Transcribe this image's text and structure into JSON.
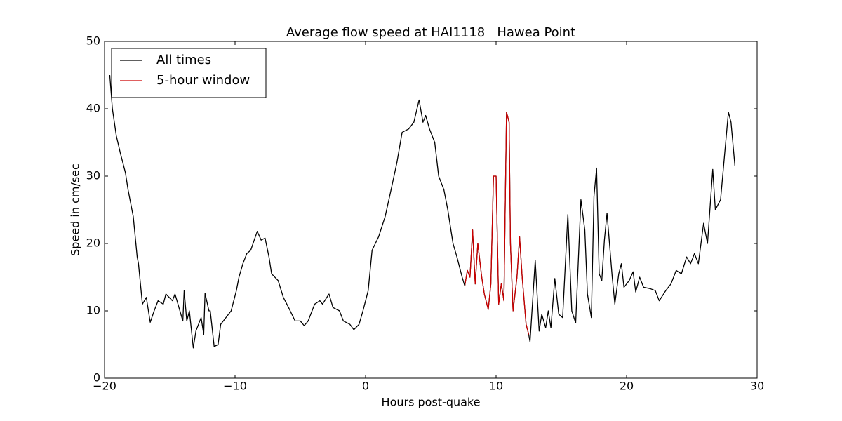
{
  "chart_data": {
    "type": "line",
    "title": "Average flow speed at HAI1118   Hawea Point",
    "xlabel": "Hours post-quake",
    "ylabel": "Speed in cm/sec",
    "xlim": [
      -20,
      30
    ],
    "ylim": [
      0,
      50
    ],
    "xticks": [
      {
        "value": -20,
        "label": "−20"
      },
      {
        "value": -10,
        "label": "−10"
      },
      0,
      10,
      20,
      30
    ],
    "yticks": [
      0,
      10,
      20,
      30,
      40,
      50
    ],
    "legend": "upper left",
    "series": [
      {
        "name": "All times",
        "color": "#000000",
        "x": [
          -19.6,
          -19.4,
          -19.1,
          -18.8,
          -18.4,
          -18.2,
          -17.8,
          -17.5,
          -17.4,
          -17.1,
          -16.8,
          -16.5,
          -16.2,
          -15.9,
          -15.5,
          -15.3,
          -14.8,
          -14.6,
          -14.3,
          -14.0,
          -13.9,
          -13.7,
          -13.5,
          -13.2,
          -13.0,
          -12.6,
          -12.4,
          -12.3,
          -12.0,
          -11.9,
          -11.6,
          -11.3,
          -11.1,
          -10.7,
          -10.3,
          -9.9,
          -9.7,
          -9.4,
          -9.1,
          -8.8,
          -8.3,
          -8.0,
          -7.7,
          -7.4,
          -7.2,
          -6.7,
          -6.3,
          -5.9,
          -5.4,
          -5.0,
          -4.7,
          -4.4,
          -3.9,
          -3.5,
          -3.3,
          -2.8,
          -2.5,
          -2.0,
          -1.7,
          -1.2,
          -0.9,
          -0.5,
          -0.2,
          0.2,
          0.5,
          1.0,
          1.5,
          1.9,
          2.4,
          2.8,
          3.3,
          3.7,
          4.1,
          4.4,
          4.6,
          4.9,
          5.3,
          5.6,
          6.0,
          6.3,
          6.7,
          7.0,
          7.4,
          7.6,
          7.8,
          8.0,
          8.2,
          8.4,
          8.6,
          8.9,
          9.1,
          9.4,
          9.6,
          9.8,
          10.0,
          10.2,
          10.4,
          10.6,
          10.8,
          11.0,
          11.1,
          11.3,
          11.6,
          11.8,
          12.0,
          12.3,
          12.5,
          12.6,
          13.0,
          13.3,
          13.5,
          13.8,
          14.0,
          14.2,
          14.5,
          14.8,
          15.1,
          15.5,
          15.8,
          16.1,
          16.5,
          16.8,
          17.0,
          17.3,
          17.5,
          17.7,
          17.9,
          18.1,
          18.3,
          18.5,
          18.9,
          19.1,
          19.4,
          19.6,
          19.8,
          20.2,
          20.5,
          20.7,
          21.0,
          21.3,
          21.8,
          22.2,
          22.5,
          23.0,
          23.4,
          23.8,
          24.2,
          24.6,
          24.9,
          25.2,
          25.5,
          25.9,
          26.2,
          26.6,
          26.8,
          27.2,
          27.5,
          27.8,
          28.0,
          28.3
        ],
        "values": [
          45,
          40,
          36,
          33.5,
          30.5,
          28,
          24,
          18,
          17,
          11,
          12,
          8.3,
          10,
          11.5,
          11,
          12.5,
          11.5,
          12.5,
          10.5,
          8.5,
          13,
          8.5,
          10,
          4.5,
          7,
          9,
          6.5,
          12.6,
          10,
          10,
          4.7,
          5,
          8,
          9,
          10,
          13,
          15,
          17,
          18.5,
          19,
          21.8,
          20.5,
          20.8,
          18,
          15.5,
          14.5,
          12,
          10.5,
          8.5,
          8.5,
          7.8,
          8.5,
          11,
          11.5,
          11,
          12.5,
          10.5,
          10,
          8.5,
          8,
          7.2,
          8,
          10,
          13,
          19,
          21,
          24,
          27.5,
          32,
          36.5,
          37,
          38,
          41.3,
          38,
          39,
          37,
          35,
          30,
          28,
          25,
          20,
          18,
          15,
          13.7,
          16,
          15,
          22,
          14,
          20,
          15,
          12.5,
          10.2,
          14,
          30,
          30,
          11,
          14,
          11.5,
          39.5,
          38,
          20,
          10,
          15,
          21,
          15,
          8,
          6.5,
          5.4,
          17.5,
          7,
          9.5,
          7.5,
          10,
          7.5,
          14.8,
          9.5,
          9,
          24.3,
          10,
          8.2,
          26.5,
          22,
          12.5,
          9,
          27,
          31.2,
          15.5,
          14.5,
          20.5,
          24.5,
          15,
          11,
          15.5,
          17,
          13.5,
          14.5,
          15.8,
          12.8,
          15,
          13.5,
          13.3,
          13,
          11.5,
          13,
          14,
          16,
          15.5,
          18,
          17,
          18.5,
          17,
          23,
          20,
          31,
          25,
          26.5,
          33,
          39.5,
          38,
          31.5
        ]
      },
      {
        "name": "5-hour window",
        "color": "#cc0000",
        "x": [
          7.6,
          7.8,
          8.0,
          8.2,
          8.4,
          8.6,
          8.9,
          9.1,
          9.4,
          9.6,
          9.8,
          10.0,
          10.2,
          10.4,
          10.6,
          10.8,
          11.0,
          11.1,
          11.3,
          11.6,
          11.8,
          12.0,
          12.3,
          12.5
        ],
        "values": [
          13.7,
          16,
          15,
          22,
          14,
          20,
          15,
          12.5,
          10.2,
          14,
          30,
          30,
          11,
          14,
          11.5,
          39.5,
          38,
          20,
          10,
          15,
          21,
          15,
          8,
          6.5
        ]
      }
    ]
  }
}
